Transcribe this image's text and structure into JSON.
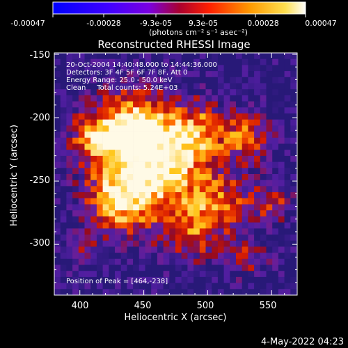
{
  "colorbar": {
    "ticks": [
      "-0.00047",
      "-0.00028",
      "-9.3e-05",
      "9.3e-05",
      "0.00028",
      "0.00047"
    ],
    "units_label": "(photons cm⁻² s⁻¹ asec⁻²)",
    "colors": [
      "#0000ff",
      "#7a00ff",
      "#ff0000",
      "#ff9900",
      "#ffffff"
    ]
  },
  "title": "Reconstructed RHESSI Image",
  "info_lines": [
    "20-Oct-2004 14:40:48.000 to 14:44:36.000",
    "Detectors: 3F 4F 5F 6F 7F 8F, Att 0",
    "Energy Range: 25.0 - 50.0 keV",
    "Clean     Total counts: 5.24E+03"
  ],
  "peak_text": "Position of Peak = [464,-238]",
  "axes": {
    "xlabel": "Heliocentric X (arcsec)",
    "ylabel": "Heliocentric Y (arcsec)",
    "xticks": [
      "400",
      "450",
      "500",
      "550"
    ],
    "yticks": [
      "-150",
      "-200",
      "-250",
      "-300"
    ]
  },
  "timestamp": "4-May-2022 04:23"
}
